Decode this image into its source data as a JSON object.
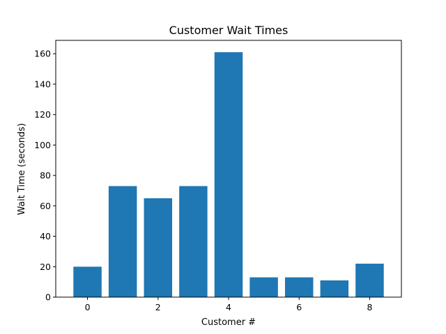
{
  "chart_data": {
    "type": "bar",
    "title": "Customer Wait Times",
    "xlabel": "Customer #",
    "ylabel": "Wait Time (seconds)",
    "categories": [
      0,
      1,
      2,
      3,
      4,
      5,
      6,
      7,
      8
    ],
    "values": [
      20,
      73,
      65,
      73,
      161,
      13,
      13,
      11,
      22
    ],
    "xlim": [
      -0.9,
      8.9
    ],
    "ylim": [
      0,
      168.8
    ],
    "xticks": [
      0,
      2,
      4,
      6,
      8
    ],
    "yticks": [
      0,
      20,
      40,
      60,
      80,
      100,
      120,
      140,
      160
    ],
    "bar_color": "#1f77b4",
    "grid": false,
    "legend": "none"
  }
}
